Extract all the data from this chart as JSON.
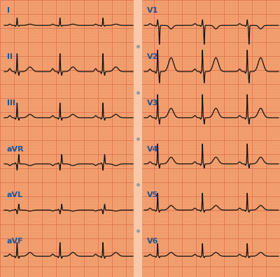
{
  "bg_color": "#F2A070",
  "grid_minor_color": "#EE9060",
  "grid_major_color": "#E07050",
  "line_color": "#111111",
  "label_color": "#1a5599",
  "leads_left": [
    "I",
    "II",
    "III",
    "aVR",
    "aVL",
    "aVF"
  ],
  "leads_right": [
    "V1",
    "V2",
    "V3",
    "V4",
    "V5",
    "V6"
  ],
  "separator_color": "#F8C8A8",
  "lead_params": {
    "I": {
      "r_amp": 0.35,
      "p_amp": 0.06,
      "t_amp": 0.06,
      "q_amp": 0.04,
      "s_amp": 0.04,
      "inv": false,
      "n_beats": 3
    },
    "II": {
      "r_amp": 0.85,
      "p_amp": 0.14,
      "t_amp": 0.22,
      "q_amp": 0.1,
      "s_amp": 0.18,
      "inv": false,
      "n_beats": 3
    },
    "III": {
      "r_amp": 0.7,
      "p_amp": 0.1,
      "t_amp": 0.16,
      "q_amp": 0.07,
      "s_amp": 0.12,
      "inv": false,
      "n_beats": 3
    },
    "aVR": {
      "r_amp": 0.3,
      "p_amp": 0.08,
      "t_amp": 0.08,
      "q_amp": 0.05,
      "s_amp": 0.45,
      "inv": true,
      "n_beats": 3
    },
    "aVL": {
      "r_amp": 0.18,
      "p_amp": 0.05,
      "t_amp": 0.05,
      "q_amp": 0.04,
      "s_amp": 0.28,
      "inv": true,
      "n_beats": 3
    },
    "aVF": {
      "r_amp": 0.65,
      "p_amp": 0.1,
      "t_amp": 0.18,
      "q_amp": 0.07,
      "s_amp": 0.1,
      "inv": false,
      "n_beats": 3
    },
    "V1": {
      "r_amp": 0.22,
      "p_amp": 0.07,
      "t_amp": -0.14,
      "q_amp": 0.04,
      "s_amp": 0.75,
      "inv": false,
      "n_beats": 3
    },
    "V2": {
      "r_amp": 0.85,
      "p_amp": 0.1,
      "t_amp": 0.55,
      "q_amp": 0.07,
      "s_amp": 0.45,
      "inv": false,
      "n_beats": 3
    },
    "V3": {
      "r_amp": 1.1,
      "p_amp": 0.1,
      "t_amp": 0.45,
      "q_amp": 0.07,
      "s_amp": 0.3,
      "inv": false,
      "n_beats": 3
    },
    "V4": {
      "r_amp": 0.95,
      "p_amp": 0.1,
      "t_amp": 0.32,
      "q_amp": 0.07,
      "s_amp": 0.2,
      "inv": false,
      "n_beats": 3
    },
    "V5": {
      "r_amp": 0.8,
      "p_amp": 0.09,
      "t_amp": 0.22,
      "q_amp": 0.06,
      "s_amp": 0.1,
      "inv": false,
      "n_beats": 3
    },
    "V6": {
      "r_amp": 0.6,
      "p_amp": 0.09,
      "t_amp": 0.18,
      "q_amp": 0.05,
      "s_amp": 0.07,
      "inv": false,
      "n_beats": 3
    }
  }
}
